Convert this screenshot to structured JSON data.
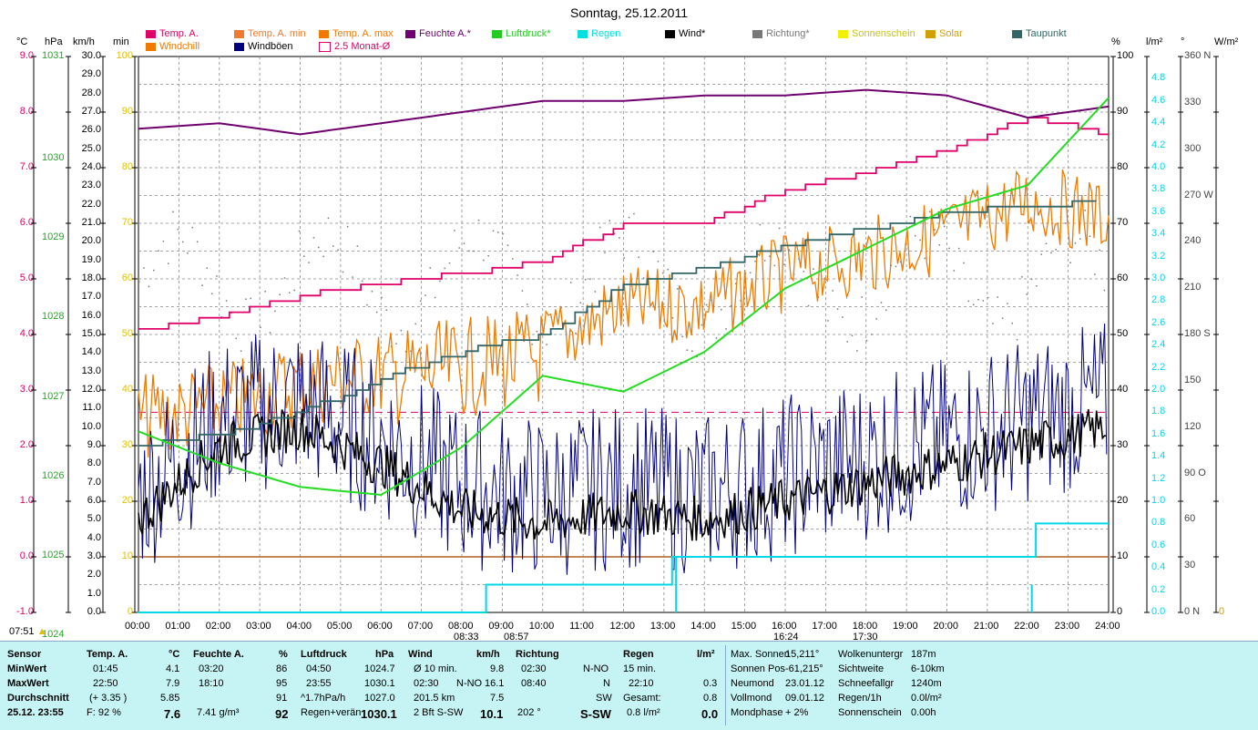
{
  "title": "Sonntag, 25.12.2011",
  "legend_row1": [
    {
      "label": "Temp. A.",
      "color": "#e0006a",
      "x": 160
    },
    {
      "label": "Temp. A. min",
      "color": "#f07a30",
      "x": 257
    },
    {
      "label": "Temp. A. max",
      "color": "#f07a00",
      "x": 350
    },
    {
      "label": "Feuchte A.*",
      "color": "#700070",
      "x": 445
    },
    {
      "label": "Luftdruck*",
      "color": "#22cc22",
      "x": 540
    },
    {
      "label": "Regen",
      "color": "#00e0e0",
      "x": 634
    },
    {
      "label": "Wind*",
      "color": "#000000",
      "x": 730
    },
    {
      "label": "Richtung*",
      "color": "#777777",
      "x": 826
    },
    {
      "label": "Sonnenschein",
      "color": "#f0f000",
      "x": 920
    },
    {
      "label": "Solar",
      "color": "#d4a000",
      "x": 1016
    },
    {
      "label": "Taupunkt",
      "color": "#336666",
      "x": 1111
    }
  ],
  "legend_row2": [
    {
      "label": "Windchill",
      "color": "#f07a00",
      "x": 160
    },
    {
      "label": "Windböen",
      "color": "#000080",
      "x": 257
    },
    {
      "label": "2.5 Monat-Ø",
      "color": "#ffffff",
      "x": 350
    }
  ],
  "units": {
    "c": "°C",
    "hpa": "hPa",
    "kmh": "km/h",
    "min": "min",
    "pct": "%",
    "lm2": "l/m²",
    "deg": "°",
    "wm2": "W/m²"
  },
  "colors": {
    "temp": "#e0006a",
    "hpa": "#22aa22",
    "min": "#e0c000",
    "rain": "#00d8e8",
    "solar": "#d4a000",
    "feuchte": "#700070",
    "windchill": "#f07a00",
    "wind": "#000000",
    "boeen": "#000080",
    "luftdruck": "#22dd22",
    "taupunkt": "#336666",
    "richtung": "#777777"
  },
  "axes": {
    "celsius": [
      "9.0",
      "8.0",
      "7.0",
      "6.0",
      "5.0",
      "4.0",
      "3.0",
      "2.0",
      "1.0",
      "0.0",
      "-1.0"
    ],
    "hpa": [
      "1031",
      "1030",
      "1029",
      "1028",
      "1027",
      "1026",
      "1025",
      "1024"
    ],
    "kmh": [
      "30.0",
      "29.0",
      "28.0",
      "27.0",
      "26.0",
      "25.0",
      "24.0",
      "23.0",
      "22.0",
      "21.0",
      "20.0",
      "19.0",
      "18.0",
      "17.0",
      "16.0",
      "15.0",
      "14.0",
      "13.0",
      "12.0",
      "11.0",
      "10.0",
      "9.0",
      "8.0",
      "7.0",
      "6.0",
      "5.0",
      "4.0",
      "3.0",
      "2.0",
      "1.0",
      "0.0"
    ],
    "minutes": [
      "100",
      "90",
      "80",
      "70",
      "60",
      "50",
      "40",
      "30",
      "20",
      "10",
      "0"
    ],
    "percent": [
      "100",
      "90",
      "80",
      "70",
      "60",
      "50",
      "40",
      "30",
      "20",
      "10",
      "0"
    ],
    "rain": [
      "4.8",
      "4.6",
      "4.4",
      "4.2",
      "4.0",
      "3.8",
      "3.6",
      "3.4",
      "3.2",
      "3.0",
      "2.8",
      "2.6",
      "2.4",
      "2.2",
      "2.0",
      "1.8",
      "1.6",
      "1.4",
      "1.2",
      "1.0",
      "0.8",
      "0.6",
      "0.4",
      "0.2",
      "0.0"
    ],
    "direction": [
      "360 N",
      "330",
      "300",
      "270 W",
      "240",
      "210",
      "180 S",
      "150",
      "120",
      "90  O",
      "60",
      "30",
      "0   N"
    ],
    "solar_zero": "0",
    "hours": [
      "00:00",
      "01:00",
      "02:00",
      "03:00",
      "04:00",
      "05:00",
      "06:00",
      "07:00",
      "08:00",
      "09:00",
      "10:00",
      "11:00",
      "12:00",
      "13:00",
      "14:00",
      "15:00",
      "16:00",
      "17:00",
      "18:00",
      "19:00",
      "20:00",
      "21:00",
      "22:00",
      "23:00",
      "24:00"
    ]
  },
  "sun_marks": {
    "sunrise": "07:51",
    "t1": "08:33",
    "t2": "08:57",
    "t3": "16:24",
    "t4": "17:30"
  },
  "chart_data": {
    "type": "line",
    "x_label_unit": "Uhrzeit",
    "x": [
      "00:00",
      "02:00",
      "04:00",
      "06:00",
      "08:00",
      "10:00",
      "12:00",
      "14:00",
      "16:00",
      "18:00",
      "20:00",
      "22:00",
      "24:00"
    ],
    "series": [
      {
        "name": "Temp. A.",
        "unit": "°C",
        "values": [
          4.1,
          4.3,
          4.7,
          4.9,
          5.1,
          5.3,
          6.0,
          6.0,
          6.6,
          6.9,
          7.3,
          7.9,
          7.6
        ]
      },
      {
        "name": "Feuchte A.*",
        "unit": "%",
        "values": [
          87,
          88,
          86,
          88,
          90,
          92,
          92,
          93,
          93,
          94,
          93,
          89,
          91
        ]
      },
      {
        "name": "Luftdruck*",
        "unit": "hPa",
        "values": [
          1026.0,
          1025.6,
          1025.3,
          1025.2,
          1025.8,
          1026.7,
          1026.5,
          1027.0,
          1027.8,
          1028.3,
          1028.8,
          1029.1,
          1030.2
        ]
      },
      {
        "name": "Wind*",
        "unit": "km/h",
        "values": [
          5.0,
          9.0,
          10.0,
          8.0,
          5.5,
          4.8,
          5.5,
          5.0,
          6.0,
          7.0,
          8.0,
          9.0,
          10.0
        ]
      },
      {
        "name": "Taupunkt",
        "unit": "°C",
        "values": [
          2.0,
          2.2,
          2.6,
          3.2,
          3.7,
          4.0,
          4.9,
          5.2,
          5.6,
          5.9,
          6.2,
          6.3,
          6.4
        ]
      },
      {
        "name": "Regen",
        "unit": "l/m²",
        "values": [
          0,
          0,
          0,
          0,
          0,
          0.2,
          0.2,
          0.5,
          0.5,
          0.5,
          0.5,
          0.5,
          0.8
        ]
      },
      {
        "name": "2.5 Monat-Ø",
        "unit": "°C",
        "values": [
          2.6,
          2.6,
          2.6,
          2.6,
          2.6,
          2.6,
          2.6,
          2.6,
          2.6,
          2.6,
          2.6,
          2.6,
          2.6
        ]
      }
    ]
  },
  "footer": {
    "col1": [
      "Sensor",
      "MinWert",
      "MaxWert",
      "Durchschnitt",
      "25.12. 23:55"
    ],
    "temp": {
      "head": "Temp. A.",
      "unit": "°C",
      "min_t": "01:45",
      "min_v": "4.1",
      "max_t": "22:50",
      "max_v": "7.9",
      "avg_t": "(+ 3.35 )",
      "avg_v": "5.85",
      "cur_t": "F: 92 %",
      "cur_v": "7.6"
    },
    "feuchte": {
      "head": "Feuchte A.",
      "unit": "%",
      "min_t": "03:20",
      "min_v": "86",
      "max_t": "18:10",
      "max_v": "95",
      "avg_v": "91",
      "cur_t": "7.41 g/m³",
      "cur_v": "92"
    },
    "luft": {
      "head": "Luftdruck",
      "unit": "hPa",
      "min_t": "04:50",
      "min_v": "1024.7",
      "max_t": "23:55",
      "max_v": "1030.1",
      "avg_t": "^1.7hPa/h",
      "avg_v": "1027.0",
      "cur_t": "Regen+verän",
      "cur_v": "1030.1"
    },
    "wind": {
      "head": "Wind",
      "unit": "km/h",
      "r1_t": "Ø 10 min.",
      "r1_v": "9.8",
      "r2_t": "02:30",
      "r2_d": "N-NO",
      "r2_v": "16.1",
      "r3_t": "201.5 km",
      "r3_v": "7.5",
      "r4_t": "2 Bft S-SW",
      "r4_v": "10.1"
    },
    "richtung": {
      "head": "Richtung",
      "r1_t": "02:30",
      "r1_v": "N-NO",
      "r2_t": "08:40",
      "r2_v": "N",
      "r3_v": "SW",
      "r4_t": "202 °",
      "r4_v": "S-SW"
    },
    "regen": {
      "head": "Regen",
      "unit": "l/m²",
      "r1": "15 min.",
      "r2_t": "22:10",
      "r2_v": "0.3",
      "r3_t": "Gesamt:",
      "r3_v": "0.8",
      "r4_t": "0.8 l/m²",
      "r4_v": "0.0"
    },
    "astro": [
      [
        "Max. Sonnen",
        "15,211°"
      ],
      [
        "Sonnen Pos",
        "-61,215°"
      ],
      [
        "Neumond",
        "23.01.12"
      ],
      [
        "Vollmond",
        "09.01.12"
      ],
      [
        "Mondphase",
        "+ 2%"
      ]
    ],
    "misc": [
      [
        "Wolkenuntergr",
        "187m"
      ],
      [
        "Sichtweite",
        "6-10km"
      ],
      [
        "Schneefallgr",
        "1240m"
      ],
      [
        "Regen/1h",
        "0.0l/m²"
      ],
      [
        "Sonnenschein",
        "0.00h"
      ]
    ]
  }
}
